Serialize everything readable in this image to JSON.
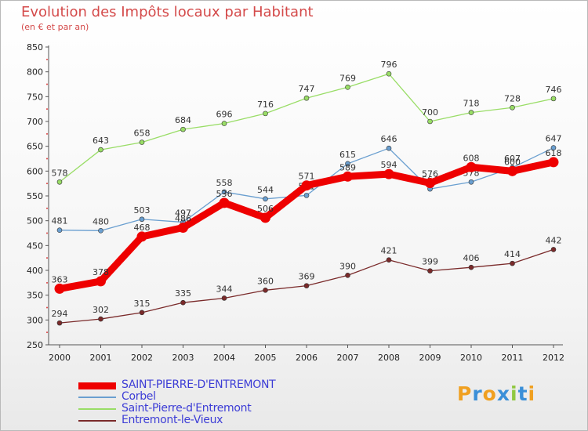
{
  "title": "Evolution des Impôts locaux par Habitant",
  "subtitle": "(en € et par an)",
  "chart_data": {
    "type": "line",
    "title": "Evolution des Impôts locaux par Habitant",
    "subtitle": "(en € et par an)",
    "x": [
      "2000",
      "2001",
      "2002",
      "2003",
      "2004",
      "2005",
      "2006",
      "2007",
      "2008",
      "2009",
      "2010",
      "2011",
      "2012"
    ],
    "ylim": [
      250,
      850
    ],
    "yticks": [
      250,
      300,
      350,
      400,
      450,
      500,
      550,
      600,
      650,
      700,
      750,
      800,
      850
    ],
    "grid": false,
    "legend_position": "bottom-left",
    "series": [
      {
        "name": "SAINT-PIERRE-D'ENTREMONT",
        "color": "#ee0000",
        "values": [
          363,
          378,
          468,
          486,
          536,
          506,
          571,
          589,
          594,
          576,
          608,
          600,
          618
        ]
      },
      {
        "name": "Corbel",
        "color": "#6a9fd0",
        "values": [
          481,
          480,
          503,
          497,
          558,
          544,
          551,
          615,
          646,
          564,
          578,
          607,
          647
        ]
      },
      {
        "name": "Saint-Pierre-d'Entremont",
        "color": "#99dd66",
        "values": [
          578,
          643,
          658,
          684,
          696,
          716,
          747,
          769,
          796,
          700,
          718,
          728,
          746
        ]
      },
      {
        "name": "Entremont-le-Vieux",
        "color": "#7a2a2a",
        "values": [
          294,
          302,
          315,
          335,
          344,
          360,
          369,
          390,
          421,
          399,
          406,
          414,
          442
        ]
      }
    ]
  },
  "logo": {
    "letters": [
      "P",
      "r",
      "o",
      "x",
      "i",
      "t",
      "i"
    ],
    "colors": [
      "#f0a020",
      "#3a8fd8",
      "#f0a020",
      "#3a8fd8",
      "#90c840",
      "#3a8fd8",
      "#f0a020"
    ]
  }
}
